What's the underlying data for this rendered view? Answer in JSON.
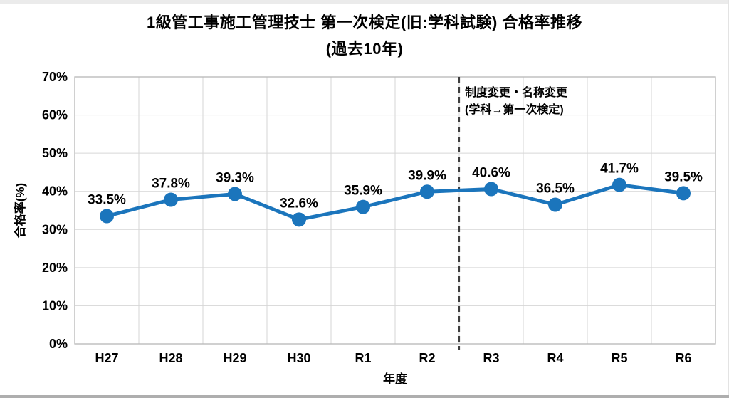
{
  "title": {
    "line1": "1級管工事施工管理技士 第一次検定(旧:学科試験) 合格率推移",
    "line2": "(過去10年)"
  },
  "chart_data": {
    "type": "line",
    "categories": [
      "H27",
      "H28",
      "H29",
      "H30",
      "R1",
      "R2",
      "R3",
      "R4",
      "R5",
      "R6"
    ],
    "values": [
      33.5,
      37.8,
      39.3,
      32.6,
      35.9,
      39.9,
      40.6,
      36.5,
      41.7,
      39.5
    ],
    "point_labels": [
      "33.5%",
      "37.8%",
      "39.3%",
      "32.6%",
      "35.9%",
      "39.9%",
      "40.6%",
      "36.5%",
      "41.7%",
      "39.5%"
    ],
    "xlabel": "年度",
    "ylabel": "合格率(%)",
    "ylim": [
      0,
      70
    ],
    "ytick_step": 10,
    "ytick_labels": [
      "0%",
      "10%",
      "20%",
      "30%",
      "40%",
      "50%",
      "60%",
      "70%"
    ],
    "grid": true,
    "legend": "none",
    "line_color": "#1b75bc",
    "gridline_color": "#d6d6d6",
    "border_color": "#b7b7b7",
    "divider_color": "#3f3f3f",
    "annotation": {
      "line1": "制度変更・名称変更",
      "line2": "(学科→第一次検定)",
      "divider_after_index": 5
    }
  }
}
